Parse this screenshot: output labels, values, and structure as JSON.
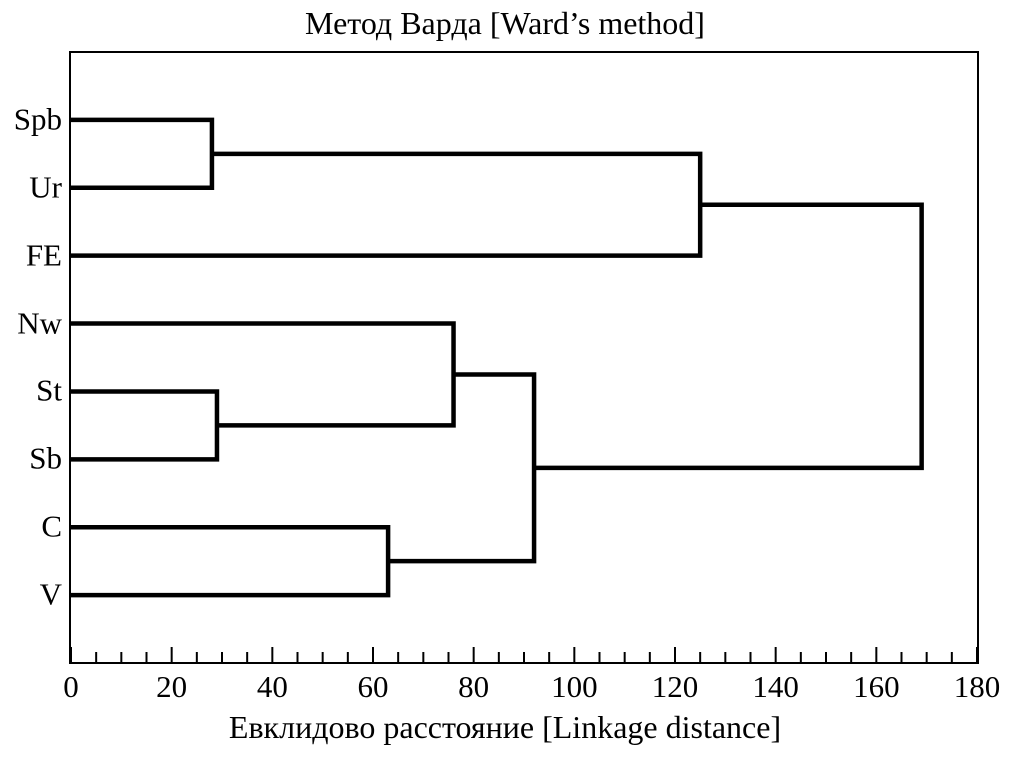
{
  "chart_data": {
    "type": "dendrogram",
    "orientation": "horizontal",
    "title": "Метод Варда [Ward’s method]",
    "xlabel": "Евклидово расстояние [Linkage distance]",
    "leaves": [
      "Spb",
      "Ur",
      "FE",
      "Nw",
      "St",
      "Sb",
      "C",
      "V"
    ],
    "merges": [
      {
        "a": "Spb",
        "b": "Ur",
        "distance": 28
      },
      {
        "a": "St",
        "b": "Sb",
        "distance": 29
      },
      {
        "a": "C",
        "b": "V",
        "distance": 63
      },
      {
        "a": "Nw",
        "b": "merge1",
        "distance": 76
      },
      {
        "a": "merge3",
        "b": "merge2",
        "distance": 92
      },
      {
        "a": "merge0",
        "b": "FE",
        "distance": 125
      },
      {
        "a": "merge5",
        "b": "merge4",
        "distance": 169
      }
    ],
    "xlim": [
      0,
      180
    ],
    "x_major_tick_step": 20,
    "x_minor_tick_step": 5,
    "x_tick_labels": [
      "0",
      "20",
      "40",
      "60",
      "80",
      "100",
      "120",
      "140",
      "160",
      "180"
    ],
    "grid": false,
    "legend": false,
    "line_color": "#000000",
    "background": "#ffffff"
  }
}
